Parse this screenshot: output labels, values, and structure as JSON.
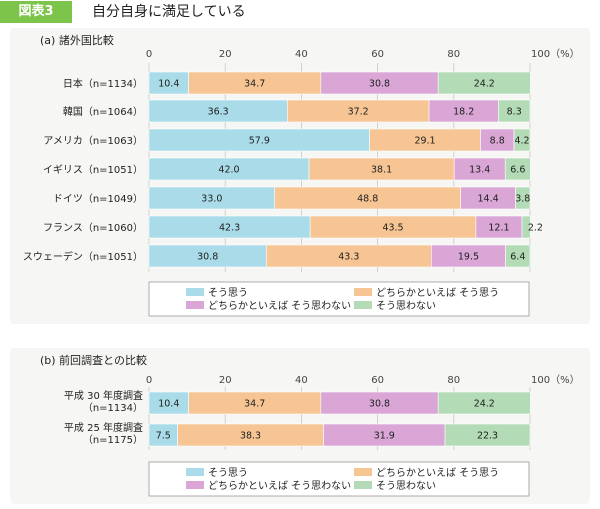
{
  "header": {
    "badge": "図表3",
    "title": "自分自身に満足している"
  },
  "colors": {
    "c1": "#a9dbe8",
    "c2": "#f6c593",
    "c3": "#d9a6d6",
    "c4": "#b3dcb6"
  },
  "legend": [
    "そう思う",
    "どちらかといえば そう思う",
    "どちらかといえば そう思わない",
    "そう思わない"
  ],
  "chart_data": [
    {
      "type": "bar",
      "orientation": "horizontal-stacked",
      "title": "(a) 諸外国比較",
      "unit_label": "100（%）",
      "xlim": [
        0,
        100
      ],
      "ticks": [
        0,
        20,
        40,
        60,
        80
      ],
      "categories": [
        "日本（n=1134）",
        "韓国（n=1064）",
        "アメリカ（n=1063）",
        "イギリス（n=1051）",
        "ドイツ（n=1049）",
        "フランス（n=1060）",
        "スウェーデン（n=1051）"
      ],
      "series": [
        {
          "name": "そう思う",
          "values": [
            10.4,
            36.3,
            57.9,
            42.0,
            33.0,
            42.3,
            30.8
          ]
        },
        {
          "name": "どちらかといえば そう思う",
          "values": [
            34.7,
            37.2,
            29.1,
            38.1,
            48.8,
            43.5,
            43.3
          ]
        },
        {
          "name": "どちらかといえば そう思わない",
          "values": [
            30.8,
            18.2,
            8.8,
            13.4,
            14.4,
            12.1,
            19.5
          ]
        },
        {
          "name": "そう思わない",
          "values": [
            24.2,
            8.3,
            4.2,
            6.6,
            3.8,
            2.2,
            6.4
          ]
        }
      ],
      "labels": [
        [
          "10.4",
          "34.7",
          "30.8",
          "24.2"
        ],
        [
          "36.3",
          "37.2",
          "18.2",
          "8.3"
        ],
        [
          "57.9",
          "29.1",
          "8.8",
          "4.2"
        ],
        [
          "42.0",
          "38.1",
          "13.4",
          "6.6"
        ],
        [
          "33.0",
          "48.8",
          "14.4",
          "3.8"
        ],
        [
          "42.3",
          "43.5",
          "12.1",
          "2.2"
        ],
        [
          "30.8",
          "43.3",
          "19.5",
          "6.4"
        ]
      ]
    },
    {
      "type": "bar",
      "orientation": "horizontal-stacked",
      "title": "(b) 前回調査との比較",
      "unit_label": "100（%）",
      "xlim": [
        0,
        100
      ],
      "ticks": [
        0,
        20,
        40,
        60,
        80
      ],
      "categories": [
        {
          "line1": "平成 30 年度調査",
          "line2": "（n=1134）"
        },
        {
          "line1": "平成 25 年度調査",
          "line2": "（n=1175）"
        }
      ],
      "series": [
        {
          "name": "そう思う",
          "values": [
            10.4,
            7.5
          ]
        },
        {
          "name": "どちらかといえば そう思う",
          "values": [
            34.7,
            38.3
          ]
        },
        {
          "name": "どちらかといえば そう思わない",
          "values": [
            30.8,
            31.9
          ]
        },
        {
          "name": "そう思わない",
          "values": [
            24.2,
            22.3
          ]
        }
      ],
      "labels": [
        [
          "10.4",
          "34.7",
          "30.8",
          "24.2"
        ],
        [
          "7.5",
          "38.3",
          "31.9",
          "22.3"
        ]
      ]
    }
  ]
}
